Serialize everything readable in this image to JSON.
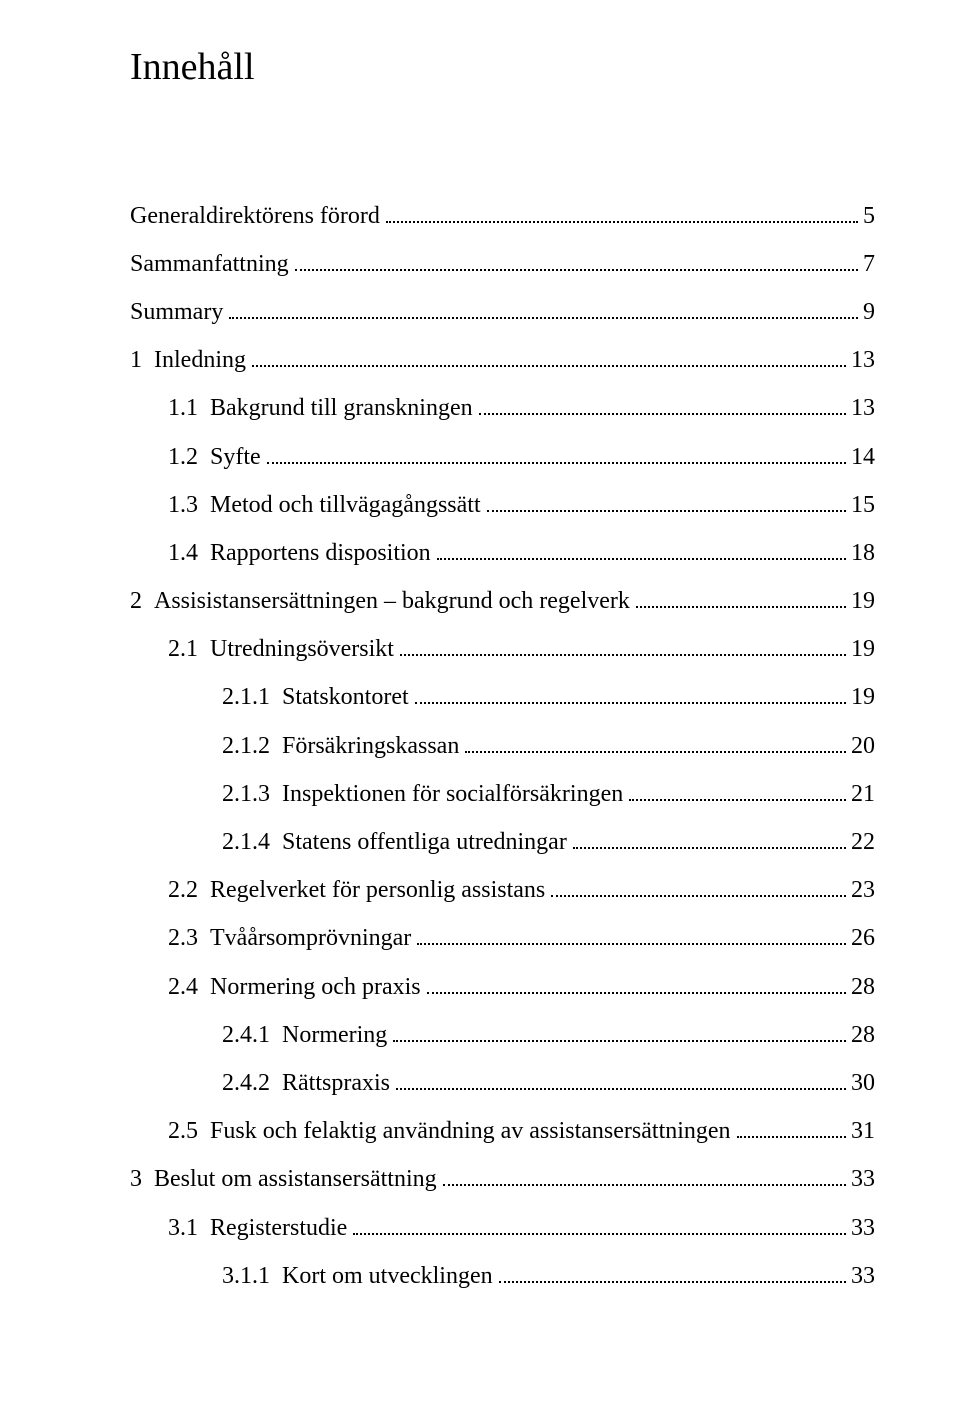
{
  "page": {
    "title": "Innehåll",
    "background_color": "#ffffff",
    "text_color": "#000000",
    "font_family": "Times New Roman",
    "title_fontsize": 38,
    "entry_fontsize": 24,
    "dot_color": "#000000"
  },
  "toc": {
    "entries": [
      {
        "level": 0,
        "num": "",
        "title": "Generaldirektörens förord",
        "page": "5"
      },
      {
        "level": 0,
        "num": "",
        "title": "Sammanfattning",
        "page": "7"
      },
      {
        "level": 0,
        "num": "",
        "title": "Summary",
        "page": "9"
      },
      {
        "level": 0,
        "num": "1",
        "title": "Inledning",
        "page": "13"
      },
      {
        "level": 1,
        "num": "1.1",
        "title": "Bakgrund till granskningen",
        "page": "13"
      },
      {
        "level": 1,
        "num": "1.2",
        "title": "Syfte",
        "page": "14"
      },
      {
        "level": 1,
        "num": "1.3",
        "title": "Metod och tillvägagångssätt",
        "page": "15"
      },
      {
        "level": 1,
        "num": "1.4",
        "title": "Rapportens disposition",
        "page": "18"
      },
      {
        "level": 0,
        "num": "2",
        "title": "Assisistansersättningen – bakgrund och regelverk",
        "page": "19"
      },
      {
        "level": 1,
        "num": "2.1",
        "title": "Utredningsöversikt",
        "page": "19"
      },
      {
        "level": 2,
        "num": "2.1.1",
        "title": "Statskontoret",
        "page": "19"
      },
      {
        "level": 2,
        "num": "2.1.2",
        "title": "Försäkringskassan",
        "page": "20"
      },
      {
        "level": 2,
        "num": "2.1.3",
        "title": "Inspektionen för socialförsäkringen",
        "page": "21"
      },
      {
        "level": 2,
        "num": "2.1.4",
        "title": "Statens offentliga utredningar",
        "page": "22"
      },
      {
        "level": 1,
        "num": "2.2",
        "title": "Regelverket för personlig assistans",
        "page": "23"
      },
      {
        "level": 1,
        "num": "2.3",
        "title": "Tvåårsomprövningar",
        "page": "26"
      },
      {
        "level": 1,
        "num": "2.4",
        "title": "Normering och praxis",
        "page": "28"
      },
      {
        "level": 2,
        "num": "2.4.1",
        "title": "Normering",
        "page": "28"
      },
      {
        "level": 2,
        "num": "2.4.2",
        "title": "Rättspraxis",
        "page": "30"
      },
      {
        "level": 1,
        "num": "2.5",
        "title": "Fusk och felaktig användning av assistansersättningen",
        "page": "31"
      },
      {
        "level": 0,
        "num": "3",
        "title": "Beslut om assistansersättning",
        "page": "33"
      },
      {
        "level": 1,
        "num": "3.1",
        "title": "Registerstudie",
        "page": "33"
      },
      {
        "level": 2,
        "num": "3.1.1",
        "title": "Kort om utvecklingen",
        "page": "33"
      }
    ]
  }
}
